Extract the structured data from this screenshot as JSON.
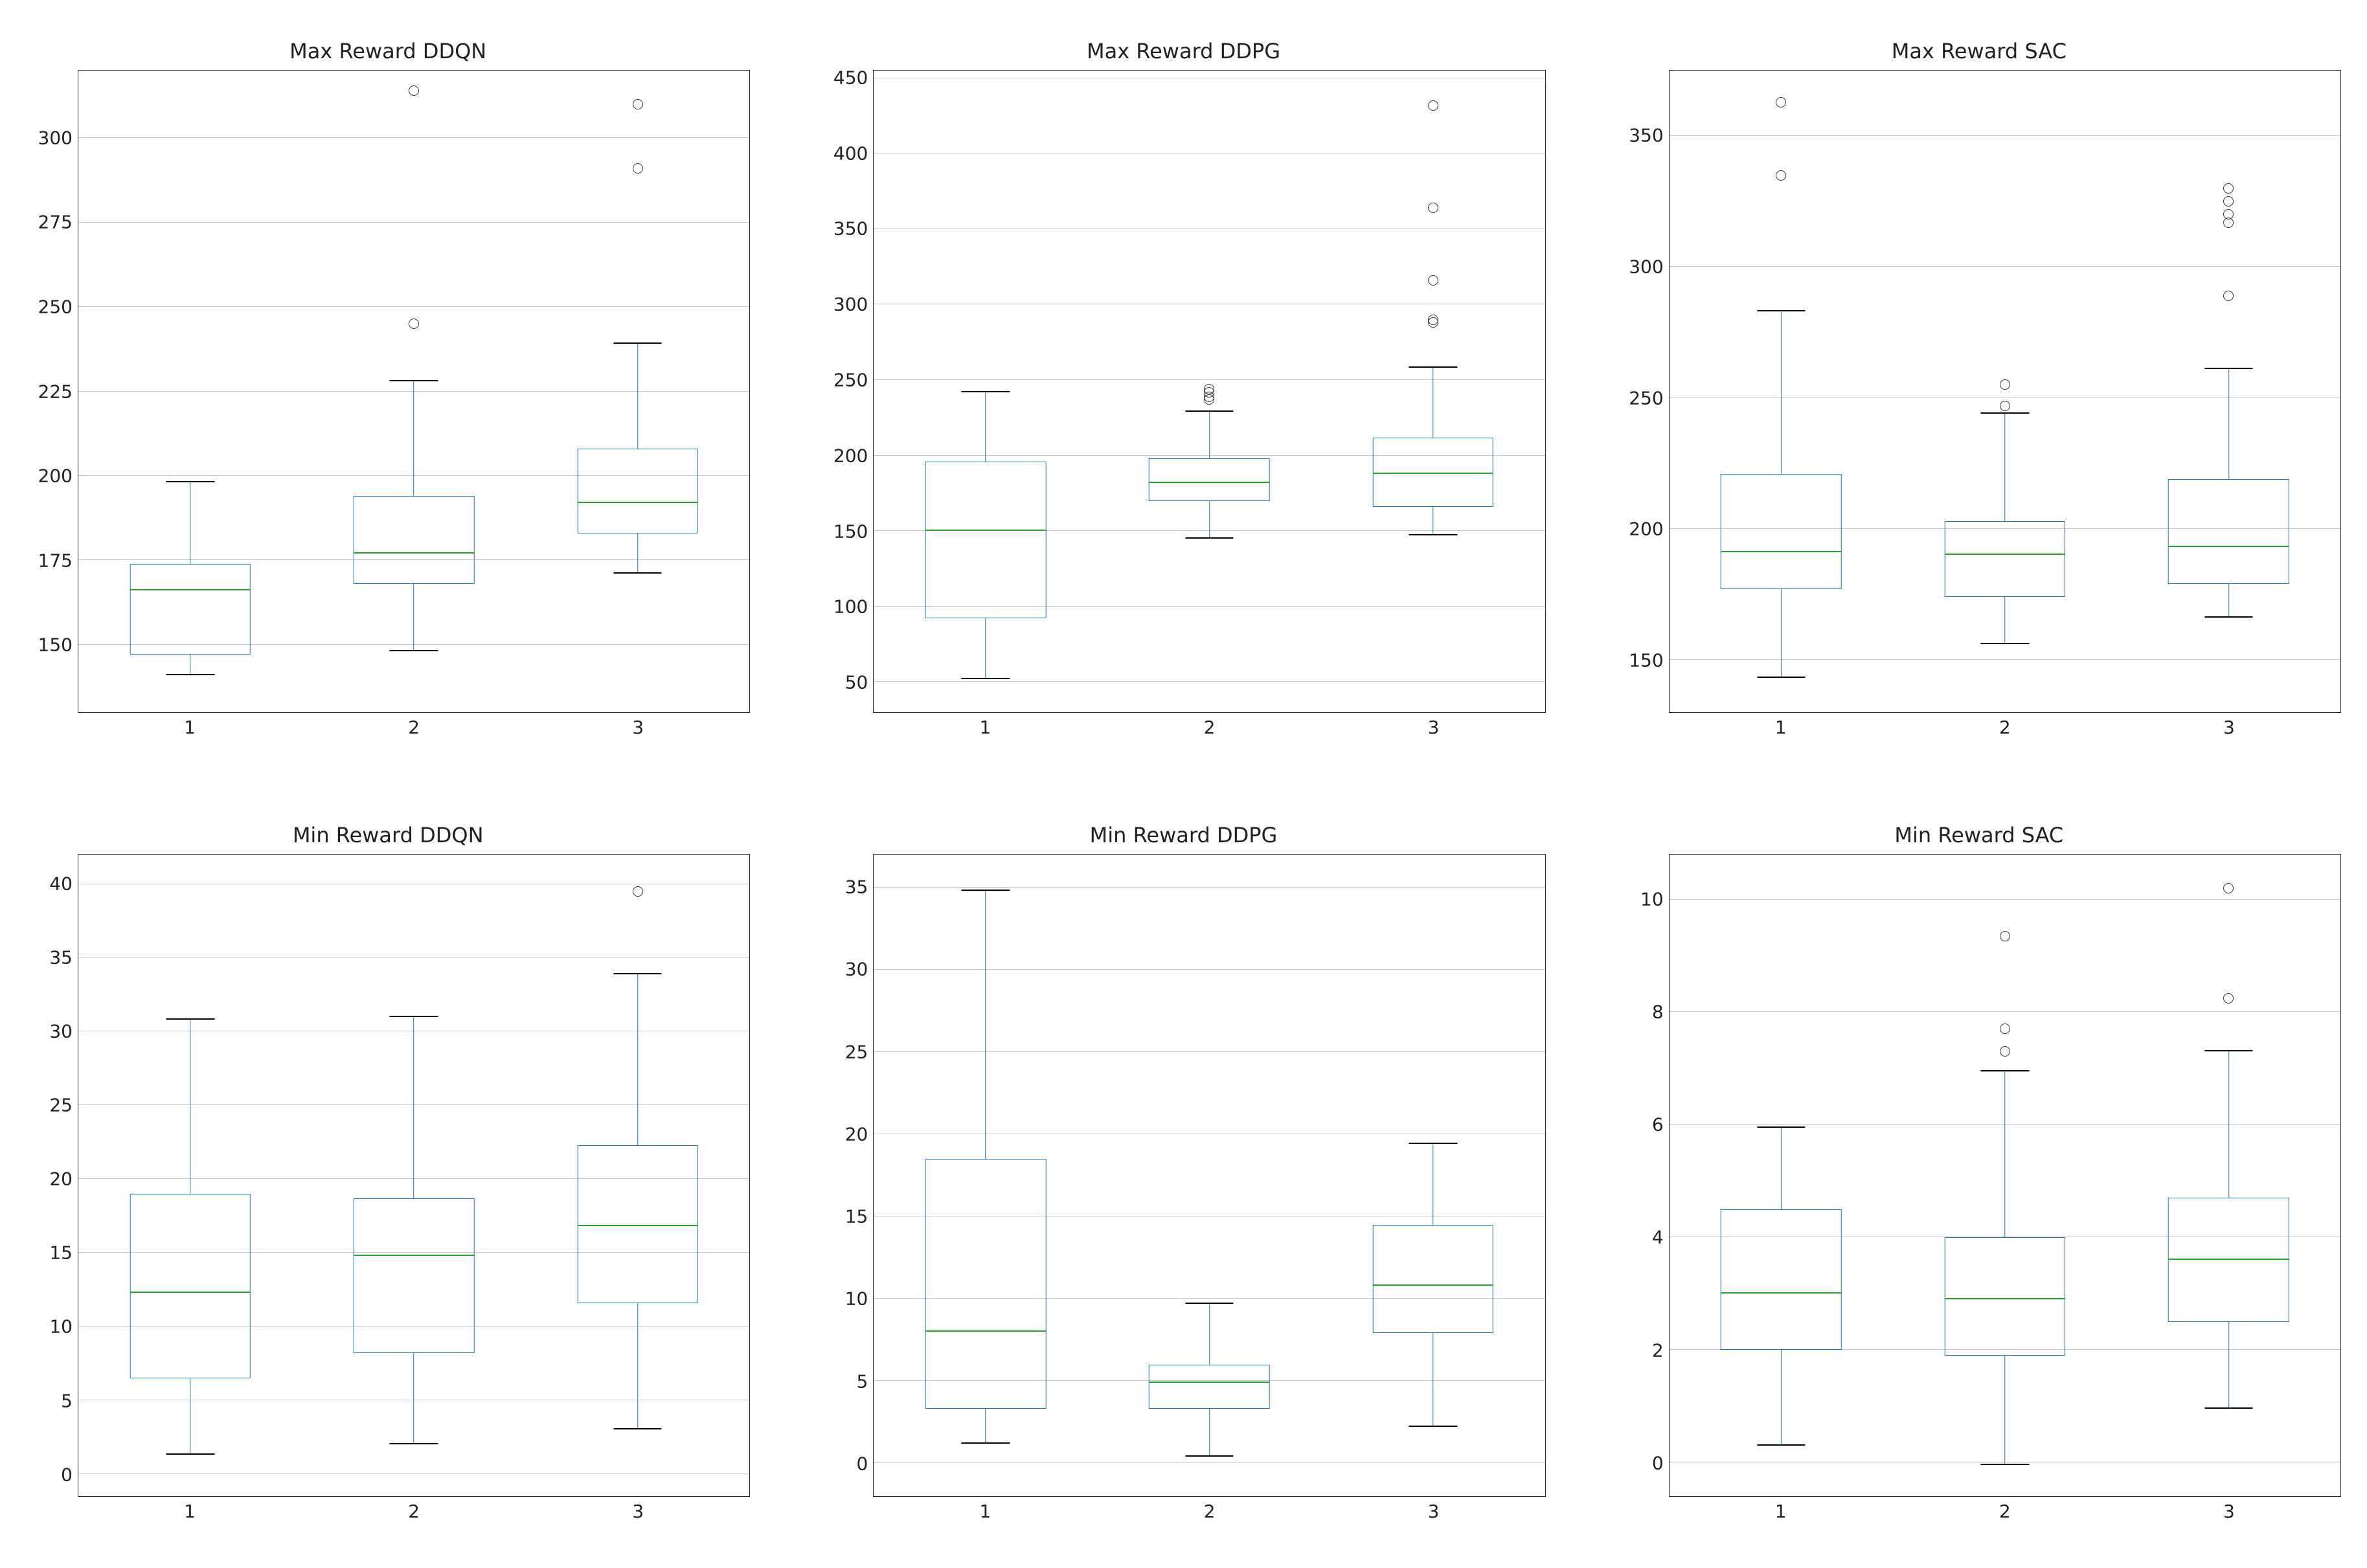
{
  "figure": {
    "rows": 2,
    "cols": 3,
    "background_color": "#ffffff",
    "font_family": "DejaVu Sans",
    "title_fontsize": 32,
    "tick_fontsize": 28,
    "box_border_color": "#1f77b4",
    "box_border_width": 1.8,
    "median_color": "#2ca02c",
    "median_width": 2.2,
    "whisker_color": "#1f77b4",
    "cap_color": "#000000",
    "flier_edge_color": "#333333",
    "flier_size": 14,
    "axis_border_color": "#222222",
    "grid_color": "#c8c8c8",
    "text_color": "#222222",
    "box_rel_width": 0.18,
    "x_positions": [
      1,
      2,
      3
    ],
    "x_tick_labels": [
      "1",
      "2",
      "3"
    ],
    "xlim": [
      0.5,
      3.5
    ]
  },
  "panels": [
    {
      "id": "max_ddqn",
      "title": "Max Reward DDQN",
      "type": "boxplot",
      "ylim": [
        130,
        320
      ],
      "yticks": [
        150,
        175,
        200,
        225,
        250,
        275,
        300
      ],
      "yticklabels": [
        "150",
        "175",
        "200",
        "225",
        "250",
        "275",
        "300"
      ],
      "boxes": [
        {
          "x": 1,
          "q1": 147,
          "median": 166,
          "q3": 174,
          "whisker_low": 141,
          "whisker_high": 198,
          "fliers": []
        },
        {
          "x": 2,
          "q1": 168,
          "median": 177,
          "q3": 194,
          "whisker_low": 148,
          "whisker_high": 228,
          "fliers": [
            245,
            314
          ]
        },
        {
          "x": 3,
          "q1": 183,
          "median": 192,
          "q3": 208,
          "whisker_low": 171,
          "whisker_high": 239,
          "fliers": [
            291,
            310
          ]
        }
      ]
    },
    {
      "id": "max_ddpg",
      "title": "Max Reward DDPG",
      "type": "boxplot",
      "ylim": [
        30,
        455
      ],
      "yticks": [
        50,
        100,
        150,
        200,
        250,
        300,
        350,
        400,
        450
      ],
      "yticklabels": [
        "50",
        "100",
        "150",
        "200",
        "250",
        "300",
        "350",
        "400",
        "450"
      ],
      "boxes": [
        {
          "x": 1,
          "q1": 92,
          "median": 150,
          "q3": 196,
          "whisker_low": 52,
          "whisker_high": 242,
          "fliers": []
        },
        {
          "x": 2,
          "q1": 170,
          "median": 182,
          "q3": 198,
          "whisker_low": 145,
          "whisker_high": 229,
          "fliers": [
            237,
            239,
            242,
            244
          ]
        },
        {
          "x": 3,
          "q1": 166,
          "median": 188,
          "q3": 212,
          "whisker_low": 147,
          "whisker_high": 258,
          "fliers": [
            288,
            290,
            316,
            364,
            432
          ]
        }
      ]
    },
    {
      "id": "max_sac",
      "title": "Max Reward SAC",
      "type": "boxplot",
      "ylim": [
        130,
        375
      ],
      "yticks": [
        150,
        200,
        250,
        300,
        350
      ],
      "yticklabels": [
        "150",
        "200",
        "250",
        "300",
        "350"
      ],
      "boxes": [
        {
          "x": 1,
          "q1": 177,
          "median": 191,
          "q3": 221,
          "whisker_low": 143,
          "whisker_high": 283,
          "fliers": [
            335,
            363
          ]
        },
        {
          "x": 2,
          "q1": 174,
          "median": 190,
          "q3": 203,
          "whisker_low": 156,
          "whisker_high": 244,
          "fliers": [
            247,
            255
          ]
        },
        {
          "x": 3,
          "q1": 179,
          "median": 193,
          "q3": 219,
          "whisker_low": 166,
          "whisker_high": 261,
          "fliers": [
            289,
            317,
            320,
            325,
            330
          ]
        }
      ]
    },
    {
      "id": "min_ddqn",
      "title": "Min Reward DDQN",
      "type": "boxplot",
      "ylim": [
        -1.5,
        42
      ],
      "yticks": [
        0,
        5,
        10,
        15,
        20,
        25,
        30,
        35,
        40
      ],
      "yticklabels": [
        "0",
        "5",
        "10",
        "15",
        "20",
        "25",
        "30",
        "35",
        "40"
      ],
      "boxes": [
        {
          "x": 1,
          "q1": 6.5,
          "median": 12.3,
          "q3": 19.0,
          "whisker_low": 1.3,
          "whisker_high": 30.8,
          "fliers": []
        },
        {
          "x": 2,
          "q1": 8.2,
          "median": 14.8,
          "q3": 18.7,
          "whisker_low": 2.0,
          "whisker_high": 31.0,
          "fliers": []
        },
        {
          "x": 3,
          "q1": 11.6,
          "median": 16.8,
          "q3": 22.3,
          "whisker_low": 3.0,
          "whisker_high": 33.9,
          "fliers": [
            39.5
          ]
        }
      ]
    },
    {
      "id": "min_ddpg",
      "title": "Min Reward DDPG",
      "type": "boxplot",
      "ylim": [
        -2,
        37
      ],
      "yticks": [
        0,
        5,
        10,
        15,
        20,
        25,
        30,
        35
      ],
      "yticklabels": [
        "0",
        "5",
        "10",
        "15",
        "20",
        "25",
        "30",
        "35"
      ],
      "boxes": [
        {
          "x": 1,
          "q1": 3.3,
          "median": 8.0,
          "q3": 18.5,
          "whisker_low": 1.2,
          "whisker_high": 34.8,
          "fliers": []
        },
        {
          "x": 2,
          "q1": 3.3,
          "median": 4.9,
          "q3": 6.0,
          "whisker_low": 0.4,
          "whisker_high": 9.7,
          "fliers": []
        },
        {
          "x": 3,
          "q1": 7.9,
          "median": 10.8,
          "q3": 14.5,
          "whisker_low": 2.2,
          "whisker_high": 19.4,
          "fliers": []
        }
      ]
    },
    {
      "id": "min_sac",
      "title": "Min Reward SAC",
      "type": "boxplot",
      "ylim": [
        -0.6,
        10.8
      ],
      "yticks": [
        0,
        2,
        4,
        6,
        8,
        10
      ],
      "yticklabels": [
        "0",
        "2",
        "4",
        "6",
        "8",
        "10"
      ],
      "boxes": [
        {
          "x": 1,
          "q1": 2.0,
          "median": 3.0,
          "q3": 4.5,
          "whisker_low": 0.3,
          "whisker_high": 5.95,
          "fliers": []
        },
        {
          "x": 2,
          "q1": 1.9,
          "median": 2.9,
          "q3": 4.0,
          "whisker_low": -0.05,
          "whisker_high": 6.95,
          "fliers": [
            7.3,
            7.7,
            9.35
          ]
        },
        {
          "x": 3,
          "q1": 2.5,
          "median": 3.6,
          "q3": 4.7,
          "whisker_low": 0.95,
          "whisker_high": 7.3,
          "fliers": [
            8.25,
            10.2
          ]
        }
      ]
    }
  ]
}
